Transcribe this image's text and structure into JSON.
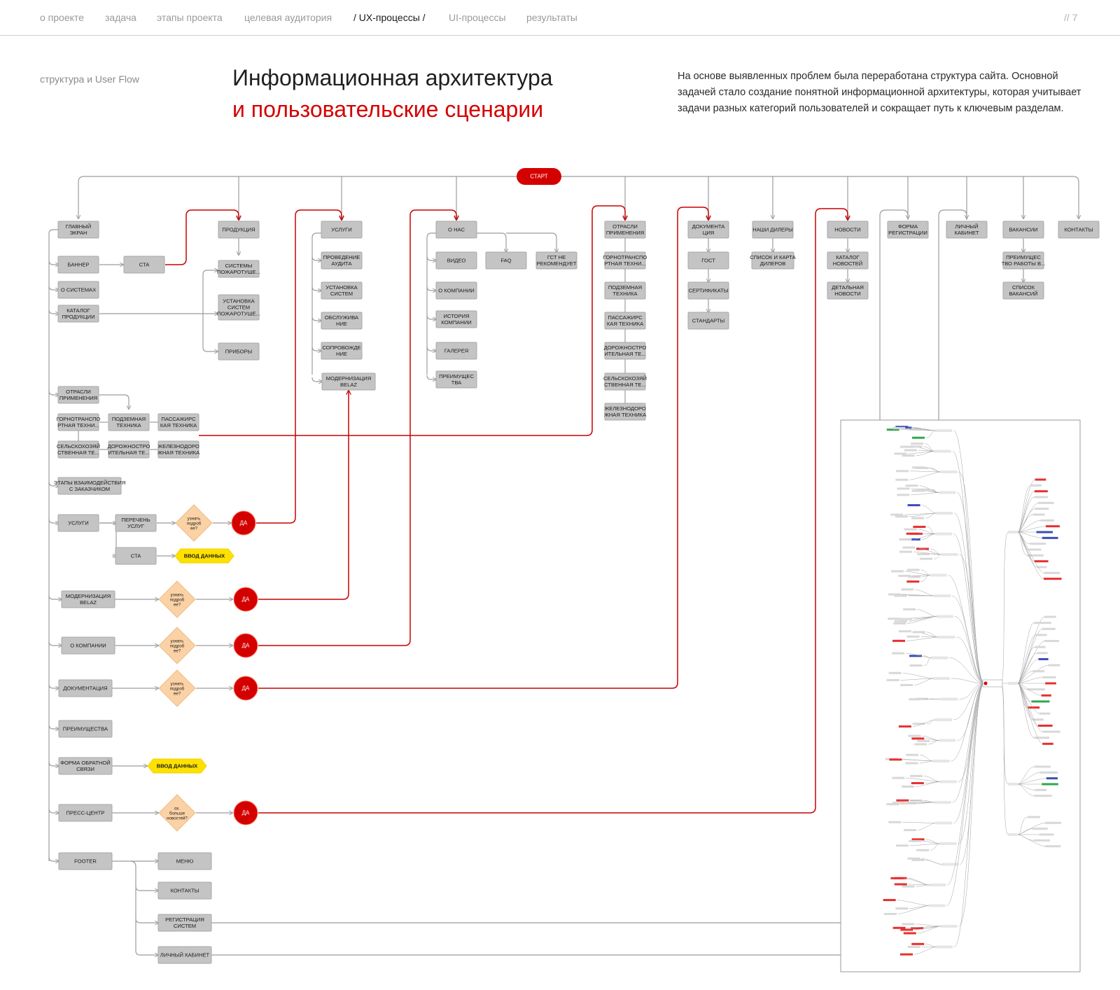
{
  "nav": {
    "items": [
      {
        "label": "о проекте",
        "active": false
      },
      {
        "label": "задача",
        "active": false
      },
      {
        "label": "этапы проекта",
        "active": false
      },
      {
        "label": "целевая аудитория",
        "active": false
      },
      {
        "label": "/ UX-процессы /",
        "active": true
      },
      {
        "label": "UI-процессы",
        "active": false
      },
      {
        "label": "результаты",
        "active": false
      }
    ],
    "page": "// 7"
  },
  "section_label": "структура и User Flow",
  "title": {
    "line1": "Информационная архитектура",
    "line2": "и пользовательские сценарии"
  },
  "description": "На основе выявленных проблем была переработана структура сайта. Основной задачей стало создание понятной информационной архитектуры, которая учитывает задачи разных категорий пользователей и сокращает путь к ключевым разделам.",
  "colors": {
    "accent": "#d40000",
    "node": "#c4c4c4",
    "decision": "#fbd2a5",
    "input": "#ffe100"
  },
  "diagram": {
    "start": "СТАРТ",
    "yes": "ДА",
    "input": "ВВОД ДАННЫХ",
    "decision_more": [
      "узнать",
      "подроб",
      "ее?"
    ],
    "decision_news": [
      "ох.",
      "больше",
      "новостей?"
    ],
    "top": {
      "main": [
        "ГЛАВНЫЙ",
        "ЭКРАН"
      ],
      "products": [
        "ПРОДУКЦИЯ"
      ],
      "services": [
        "УСЛУГИ"
      ],
      "about": [
        "О НАС"
      ],
      "industries": [
        "ОТРАСЛИ",
        "ПРИМЕНЕНИЯ"
      ],
      "docs": [
        "ДОКУМЕНТА",
        "ЦИЯ"
      ],
      "dealers": [
        "НАШИ ДИЛЕРЫ"
      ],
      "news": [
        "НОВОСТИ"
      ],
      "regform": [
        "ФОРМА",
        "РЕГИСТРАЦИИ"
      ],
      "cabinet": [
        "ЛИЧНЫЙ",
        "КАБИНЕТ"
      ],
      "vacancies": [
        "ВАКАНСИИ"
      ],
      "contacts": [
        "КОНТАКТЫ"
      ]
    },
    "main_children": {
      "banner": [
        "БАННЕР"
      ],
      "cta": [
        "CTA"
      ],
      "systems": [
        "О СИСТЕМАХ"
      ],
      "catalog": [
        "КАТАЛОГ",
        "ПРОДУКЦИИ"
      ],
      "industries": [
        "ОТРАСЛИ",
        "ПРИМЕНЕНИЯ"
      ],
      "ind_items": [
        [
          "ГОРНОТРАНСПО",
          "РТНАЯ ТЕХНИ..."
        ],
        [
          "ПОДЗЕМНАЯ",
          "ТЕХНИКА"
        ],
        [
          "ПАССАЖИРС",
          "КАЯ ТЕХНИКА"
        ],
        [
          "СЕЛЬСКОХОЗЯЙ",
          "СТВЕННАЯ ТЕ..."
        ],
        [
          "ДОРОЖНОСТРО",
          "ИТЕЛЬНАЯ ТЕ..."
        ],
        [
          "ЖЕЛЕЗНОДОРО",
          "ЖНАЯ ТЕХНИКА"
        ]
      ],
      "stages": [
        "ЭТАПЫ ВЗАИМОДЕЙСТВИЯ",
        "С ЗАКАЗЧИКОМ"
      ],
      "services": [
        "УСЛУГИ"
      ],
      "services_list": [
        "ПЕРЕЧЕНЬ",
        "УСЛУГ"
      ],
      "services_cta": [
        "CTA"
      ],
      "modern": [
        "МОДЕРНИЗАЦИЯ",
        "BELAZ"
      ],
      "company": [
        "О КОМПАНИИ"
      ],
      "documentation": [
        "ДОКУМЕНТАЦИЯ"
      ],
      "advantages": [
        "ПРЕИМУЩЕСТВА"
      ],
      "feedback": [
        "ФОРМА ОБРАТНОЙ",
        "СВЯЗИ"
      ],
      "press": [
        "ПРЕСС-ЦЕНТР"
      ],
      "footer": [
        "FOOTER"
      ],
      "footer_items": [
        [
          "МЕНЮ"
        ],
        [
          "КОНТАКТЫ"
        ],
        [
          "РЕГИСТРАЦИЯ",
          "СИСТЕМ"
        ],
        [
          "ЛИЧНЫЙ КАБИНЕТ"
        ]
      ]
    },
    "products_children": [
      [
        "СИСТЕМЫ",
        "ПОЖАРОТУШЕ..."
      ],
      [
        "УСТАНОВКА",
        "СИСТЕМ",
        "ПОЖАРОТУШЕ..."
      ],
      [
        "ПРИБОРЫ"
      ]
    ],
    "services_children": [
      [
        "ПРОВЕДЕНИЕ",
        "АУДИТА"
      ],
      [
        "УСТАНОВКА",
        "СИСТЕМ"
      ],
      [
        "ОБСЛУЖИВА",
        "НИЕ"
      ],
      [
        "СОПРОВОЖДЕ",
        "НИЕ"
      ],
      [
        "МОДЕРНИЗАЦИЯ",
        "BELAZ"
      ]
    ],
    "about_children": [
      [
        "ВИДЕО"
      ],
      [
        "FAQ"
      ],
      [
        "ГСТ НЕ",
        "РЕКОМЕНДУЕТ"
      ],
      [
        "О КОМПАНИИ"
      ],
      [
        "ИСТОРИЯ",
        "КОМПАНИИ"
      ],
      [
        "ГАЛЕРЕЯ"
      ],
      [
        "ПРЕИМУЩЕС",
        "ТВА"
      ]
    ],
    "industries_children": [
      [
        "ГОРНОТРАНСПО",
        "РТНАЯ ТЕХНИ..."
      ],
      [
        "ПОДЗЕМНАЯ",
        "ТЕХНИКА"
      ],
      [
        "ПАССАЖИРС",
        "КАЯ ТЕХНИКА"
      ],
      [
        "ДОРОЖНОСТРО",
        "ИТЕЛЬНАЯ ТЕ..."
      ],
      [
        "СЕЛЬСКОХОЗЯЙ",
        "СТВЕННАЯ ТЕ..."
      ],
      [
        "ЖЕЛЕЗНОДОРО",
        "ЖНАЯ ТЕХНИКА"
      ]
    ],
    "docs_children": [
      [
        "ГОСТ"
      ],
      [
        "СЕРТИФИКАТЫ"
      ],
      [
        "СТАНДАРТЫ"
      ]
    ],
    "dealers_children": [
      [
        "СПИСОК И КАРТА",
        "ДИЛЕРОВ"
      ]
    ],
    "news_children": [
      [
        "КАТАЛОГ",
        "НОВОСТЕЙ"
      ],
      [
        "ДЕТАЛЬНАЯ",
        "НОВОСТИ"
      ]
    ],
    "vacancies_children": [
      [
        "ПРЕИМУЩЕС",
        "ТВО РАБОТЫ В..."
      ],
      [
        "СПИСОК",
        "ВАКАНСИЙ"
      ]
    ]
  }
}
